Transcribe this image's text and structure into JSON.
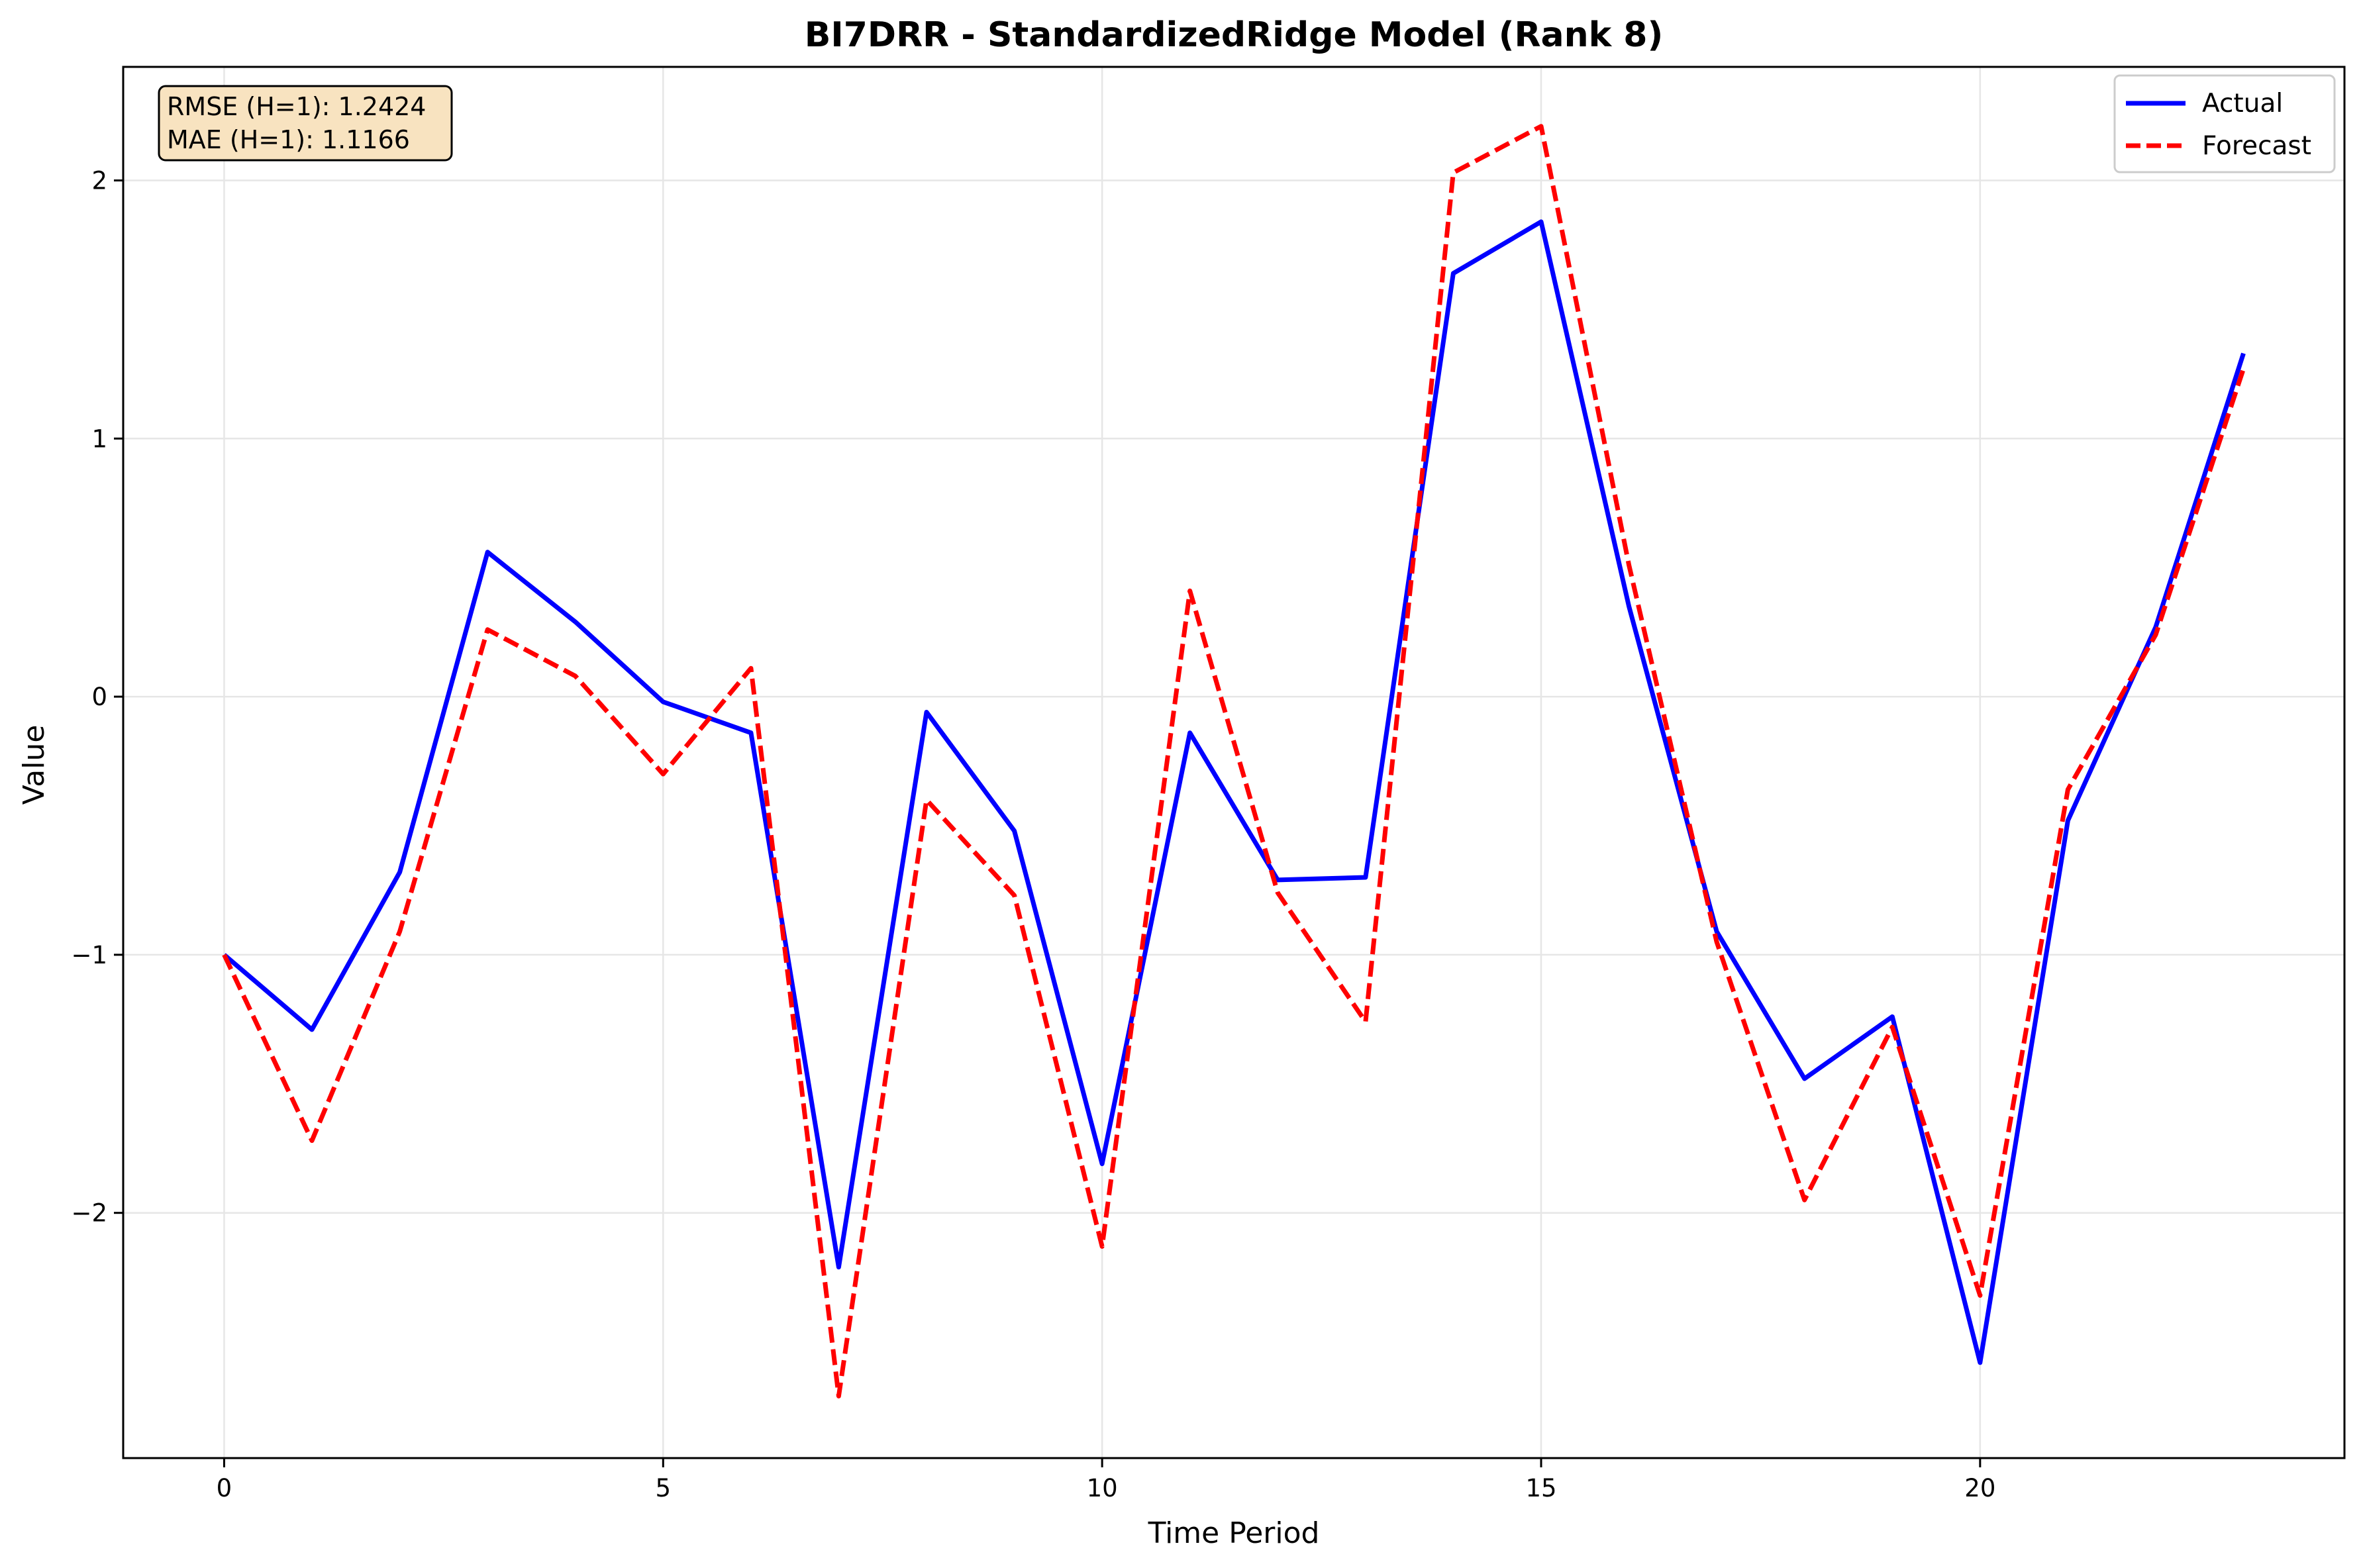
{
  "chart_data": {
    "type": "line",
    "title": "BI7DRR - StandardizedRidge Model (Rank 8)",
    "xlabel": "Time Period",
    "ylabel": "Value",
    "x": [
      0,
      1,
      2,
      3,
      4,
      5,
      6,
      7,
      8,
      9,
      10,
      11,
      12,
      13,
      14,
      15,
      16,
      17,
      18,
      19,
      20,
      21,
      22,
      23
    ],
    "xlim": [
      -1.15,
      24.15
    ],
    "ylim": [
      -2.95,
      2.44
    ],
    "xticks": [
      0,
      5,
      10,
      15,
      20
    ],
    "yticks": [
      -2,
      -1,
      0,
      1,
      2
    ],
    "xtick_labels": [
      "0",
      "5",
      "10",
      "15",
      "20"
    ],
    "ytick_labels": [
      "−2",
      "−1",
      "0",
      "1",
      "2"
    ],
    "grid": true,
    "legend_position": "top-right",
    "series": [
      {
        "name": "Actual",
        "color": "#0000ff",
        "style": "solid",
        "values": [
          -1.0,
          -1.29,
          -0.68,
          0.56,
          0.29,
          -0.02,
          -0.14,
          -2.21,
          -0.06,
          -0.52,
          -1.81,
          -0.14,
          -0.71,
          -0.7,
          1.64,
          1.84,
          0.35,
          -0.91,
          -1.48,
          -1.24,
          -2.58,
          -0.48,
          0.27,
          1.33
        ]
      },
      {
        "name": "Forecast",
        "color": "#ff0000",
        "style": "dashed",
        "values": [
          -1.0,
          -1.72,
          -0.91,
          0.26,
          0.08,
          -0.3,
          0.11,
          -2.71,
          -0.4,
          -0.77,
          -2.13,
          0.41,
          -0.76,
          -1.26,
          2.03,
          2.21,
          0.51,
          -0.95,
          -1.95,
          -1.28,
          -2.32,
          -0.36,
          0.24,
          1.27
        ]
      }
    ],
    "annotation": {
      "lines": [
        "RMSE (H=1): 1.2424",
        "MAE (H=1): 1.1166"
      ],
      "box_color": "#f8e3c0"
    }
  }
}
